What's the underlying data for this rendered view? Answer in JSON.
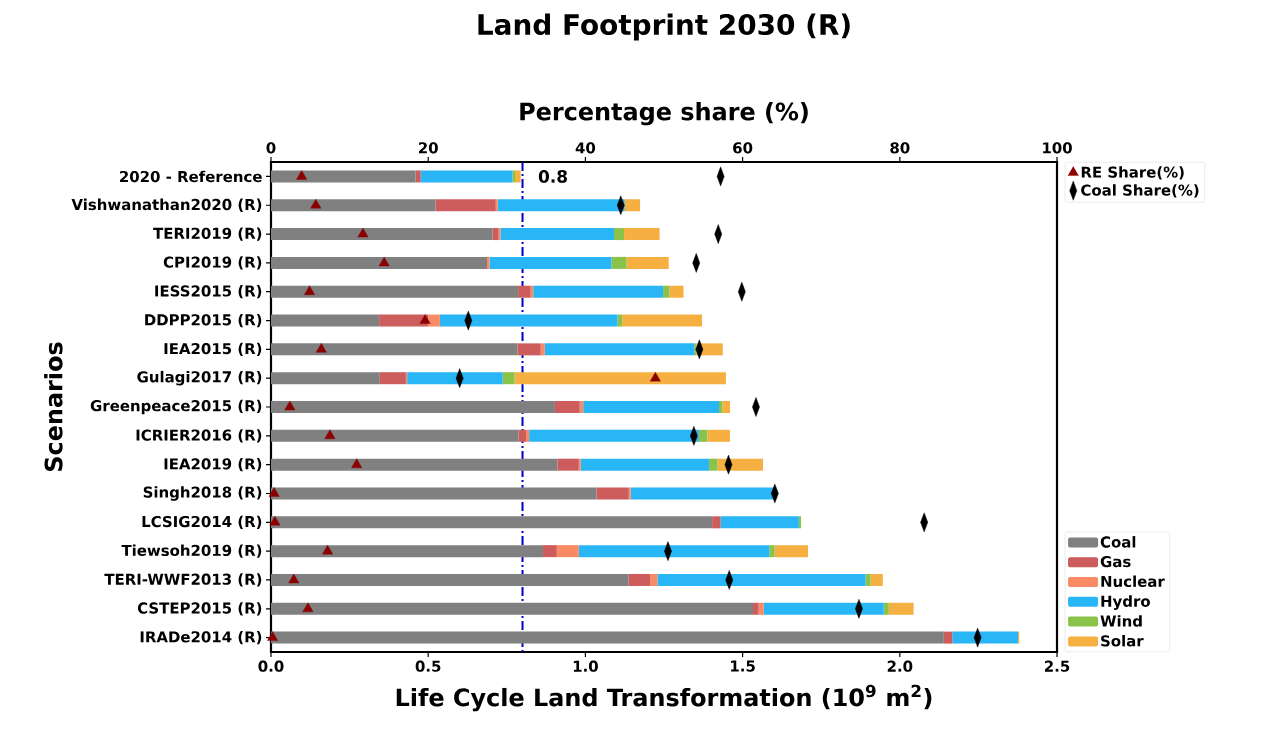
{
  "chart_data": {
    "type": "bar",
    "orientation": "horizontal",
    "stacked": true,
    "title": "Land Footprint 2030 (R)",
    "xlabel": "Life Cycle Land Transformation (10$^{9}$ m$^{2}$)",
    "ylabel": "Scenarios",
    "x2label": "Percentage share (%)",
    "categories": [
      "2020 - Reference",
      "Vishwanathan2020 (R)",
      "TERI2019 (R)",
      "CPI2019 (R)",
      "IESS2015 (R)",
      "DDPP2015 (R)",
      "IEA2015 (R)",
      "Gulagi2017 (R)",
      "Greenpeace2015 (R)",
      "ICRIER2016 (R)",
      "IEA2019 (R)",
      "Singh2018 (R)",
      "LCSIG2014 (R)",
      "Tiewsoh2019 (R)",
      "TERI-WWF2013 (R)",
      "CSTEP2015 (R)",
      "IRADe2014 (R)"
    ],
    "xlim": [
      0,
      2.5
    ],
    "xticks": [
      {
        "value": 0,
        "label": "0.0"
      },
      {
        "value": 0.5,
        "label": "0.5"
      },
      {
        "value": 1,
        "label": "1.0"
      },
      {
        "value": 1.5,
        "label": "1.5"
      },
      {
        "value": 2,
        "label": "2.0"
      },
      {
        "value": 2.5,
        "label": "2.5"
      }
    ],
    "x2lim": [
      0,
      100
    ],
    "x2ticks": [
      0,
      20,
      40,
      60,
      80,
      100
    ],
    "legend": "right",
    "series": [
      {
        "name": "Coal",
        "color": "#808080",
        "values": [
          0.46,
          0.523,
          0.705,
          0.687,
          0.786,
          0.344,
          0.784,
          0.346,
          0.903,
          0.787,
          0.911,
          1.035,
          1.403,
          0.865,
          1.137,
          1.533,
          2.14
        ]
      },
      {
        "name": "Gas",
        "color": "#cd5c5c",
        "values": [
          0.016,
          0.192,
          0.019,
          0,
          0.04,
          0.156,
          0.074,
          0.083,
          0.079,
          0.024,
          0.068,
          0.103,
          0.027,
          0.044,
          0.07,
          0.018,
          0.027
        ]
      },
      {
        "name": "Nuclear",
        "color": "#fa8a64",
        "values": [
          0,
          0.006,
          0.006,
          0.008,
          0.008,
          0.037,
          0.013,
          0.004,
          0.011,
          0.01,
          0.006,
          0.006,
          0,
          0.07,
          0.022,
          0.016,
          0
        ]
      },
      {
        "name": "Hydro",
        "color": "#29b6f6",
        "values": [
          0.292,
          0.404,
          0.361,
          0.388,
          0.413,
          0.565,
          0.475,
          0.304,
          0.432,
          0.54,
          0.408,
          0.458,
          0.249,
          0.606,
          0.662,
          0.382,
          0.209
        ]
      },
      {
        "name": "Wind",
        "color": "#8bc34a",
        "values": [
          0.008,
          0,
          0.032,
          0.048,
          0.02,
          0.015,
          0.007,
          0.038,
          0.011,
          0.027,
          0.027,
          0,
          0.007,
          0.017,
          0.016,
          0.016,
          0
        ]
      },
      {
        "name": "Solar",
        "color": "#f5b041",
        "values": [
          0.018,
          0.049,
          0.113,
          0.134,
          0.045,
          0.254,
          0.084,
          0.672,
          0.024,
          0.072,
          0.145,
          0,
          0,
          0.106,
          0.039,
          0.079,
          0.004
        ]
      },
      {
        "name": "RE Share(%)",
        "type": "scatter",
        "axis": "x2",
        "marker": "triangle",
        "color": "#8b0000",
        "values": [
          3.9,
          5.7,
          11.7,
          14.4,
          4.9,
          19.6,
          6.4,
          48.9,
          2.4,
          7.5,
          10.9,
          0.4,
          0.5,
          7.2,
          2.9,
          4.7,
          0.2
        ]
      },
      {
        "name": "Coal Share(%)",
        "type": "scatter",
        "axis": "x2",
        "marker": "diamond",
        "color": "#000000",
        "values": [
          57.2,
          44.5,
          56.9,
          54.1,
          59.9,
          25.1,
          54.5,
          24.0,
          61.7,
          53.8,
          58.2,
          64.1,
          83.1,
          50.5,
          58.3,
          74.8,
          89.9
        ]
      }
    ],
    "ref_lines": [
      {
        "axis": "x",
        "value": 0.8,
        "label": "0.8",
        "color": "#0000cd",
        "line_style": "dashdot"
      }
    ]
  }
}
